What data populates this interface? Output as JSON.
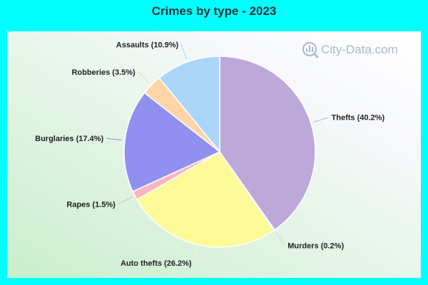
{
  "chart_data": {
    "type": "pie",
    "title": "Crimes by type - 2023",
    "slices": [
      {
        "label": "Thefts (40.2%)",
        "value": 40.2,
        "color": "#bca8d9"
      },
      {
        "label": "Murders (0.2%)",
        "value": 0.2,
        "color": "#c7e3c0"
      },
      {
        "label": "Auto thefts (26.2%)",
        "value": 26.2,
        "color": "#fefa99"
      },
      {
        "label": "Rapes (1.5%)",
        "value": 1.5,
        "color": "#f8b6c0"
      },
      {
        "label": "Burglaries (17.4%)",
        "value": 17.4,
        "color": "#8f90f0"
      },
      {
        "label": "Robberies (3.5%)",
        "value": 3.5,
        "color": "#fdd5a8"
      },
      {
        "label": "Assaults (10.9%)",
        "value": 10.9,
        "color": "#acd5fa"
      }
    ]
  },
  "watermark": {
    "text": "City-Data.com",
    "icon": "magnifier-chart-icon"
  },
  "colors": {
    "background": "#00ffff",
    "title": "#333333"
  }
}
